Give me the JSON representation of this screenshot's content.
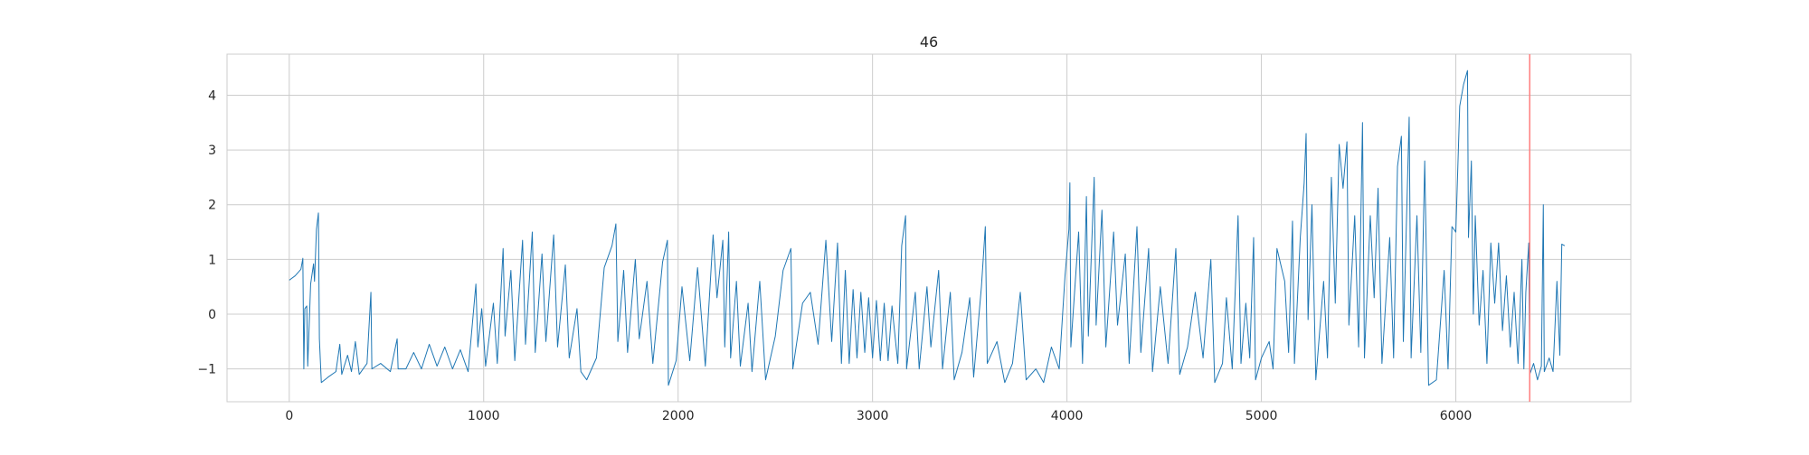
{
  "chart_data": {
    "type": "line",
    "title": "46",
    "xlabel": "",
    "ylabel": "",
    "xlim": [
      -320,
      6900
    ],
    "ylim": [
      -1.6,
      4.75
    ],
    "grid": true,
    "xticks": [
      0,
      1000,
      2000,
      3000,
      4000,
      5000,
      6000
    ],
    "xtick_labels": [
      "0",
      "1000",
      "2000",
      "3000",
      "4000",
      "5000",
      "6000"
    ],
    "yticks": [
      -1,
      0,
      1,
      2,
      3,
      4
    ],
    "ytick_labels": [
      "−1",
      "0",
      "1",
      "2",
      "3",
      "4"
    ],
    "vertical_marker": {
      "x": 6380,
      "color": "#ff7f7f"
    },
    "series": [
      {
        "color": "#1f77b4",
        "x_range": [
          0,
          6560
        ],
        "points": [
          [
            0,
            0.62
          ],
          [
            30,
            0.7
          ],
          [
            60,
            0.82
          ],
          [
            70,
            1.02
          ],
          [
            75,
            -1.0
          ],
          [
            80,
            0.1
          ],
          [
            90,
            0.15
          ],
          [
            95,
            -0.95
          ],
          [
            110,
            0.55
          ],
          [
            125,
            0.92
          ],
          [
            130,
            0.6
          ],
          [
            140,
            1.55
          ],
          [
            150,
            1.85
          ],
          [
            155,
            -0.45
          ],
          [
            165,
            -1.25
          ],
          [
            200,
            -1.15
          ],
          [
            240,
            -1.05
          ],
          [
            260,
            -0.55
          ],
          [
            270,
            -1.1
          ],
          [
            300,
            -0.75
          ],
          [
            320,
            -1.05
          ],
          [
            340,
            -0.5
          ],
          [
            360,
            -1.1
          ],
          [
            400,
            -0.9
          ],
          [
            420,
            0.4
          ],
          [
            425,
            -1.0
          ],
          [
            470,
            -0.9
          ],
          [
            520,
            -1.05
          ],
          [
            555,
            -0.45
          ],
          [
            560,
            -1.0
          ],
          [
            600,
            -1.0
          ],
          [
            640,
            -0.7
          ],
          [
            680,
            -1.0
          ],
          [
            720,
            -0.55
          ],
          [
            760,
            -0.95
          ],
          [
            800,
            -0.6
          ],
          [
            840,
            -1.0
          ],
          [
            880,
            -0.65
          ],
          [
            920,
            -1.05
          ],
          [
            960,
            0.55
          ],
          [
            970,
            -0.6
          ],
          [
            990,
            0.1
          ],
          [
            1010,
            -0.95
          ],
          [
            1050,
            0.2
          ],
          [
            1070,
            -0.9
          ],
          [
            1100,
            1.2
          ],
          [
            1110,
            -0.4
          ],
          [
            1140,
            0.8
          ],
          [
            1160,
            -0.85
          ],
          [
            1200,
            1.35
          ],
          [
            1215,
            -0.55
          ],
          [
            1250,
            1.5
          ],
          [
            1265,
            -0.7
          ],
          [
            1300,
            1.1
          ],
          [
            1320,
            -0.5
          ],
          [
            1360,
            1.45
          ],
          [
            1380,
            -0.6
          ],
          [
            1420,
            0.9
          ],
          [
            1440,
            -0.8
          ],
          [
            1480,
            0.1
          ],
          [
            1500,
            -1.05
          ],
          [
            1530,
            -1.2
          ],
          [
            1580,
            -0.8
          ],
          [
            1620,
            0.85
          ],
          [
            1660,
            1.25
          ],
          [
            1680,
            1.65
          ],
          [
            1690,
            -0.5
          ],
          [
            1720,
            0.8
          ],
          [
            1740,
            -0.7
          ],
          [
            1780,
            1.0
          ],
          [
            1800,
            -0.45
          ],
          [
            1840,
            0.6
          ],
          [
            1870,
            -0.9
          ],
          [
            1920,
            0.95
          ],
          [
            1945,
            1.35
          ],
          [
            1950,
            -1.3
          ],
          [
            1990,
            -0.85
          ],
          [
            2020,
            0.5
          ],
          [
            2060,
            -0.85
          ],
          [
            2100,
            0.85
          ],
          [
            2140,
            -0.95
          ],
          [
            2180,
            1.45
          ],
          [
            2200,
            0.3
          ],
          [
            2230,
            1.35
          ],
          [
            2240,
            -0.6
          ],
          [
            2260,
            1.5
          ],
          [
            2270,
            -0.8
          ],
          [
            2300,
            0.6
          ],
          [
            2320,
            -0.95
          ],
          [
            2360,
            0.2
          ],
          [
            2380,
            -1.05
          ],
          [
            2420,
            0.6
          ],
          [
            2450,
            -1.2
          ],
          [
            2500,
            -0.4
          ],
          [
            2540,
            0.8
          ],
          [
            2580,
            1.2
          ],
          [
            2590,
            -1.0
          ],
          [
            2640,
            0.2
          ],
          [
            2680,
            0.4
          ],
          [
            2720,
            -0.55
          ],
          [
            2760,
            1.35
          ],
          [
            2790,
            -0.5
          ],
          [
            2820,
            1.3
          ],
          [
            2840,
            -0.9
          ],
          [
            2860,
            0.8
          ],
          [
            2880,
            -0.9
          ],
          [
            2900,
            0.45
          ],
          [
            2920,
            -0.8
          ],
          [
            2940,
            0.4
          ],
          [
            2960,
            -0.7
          ],
          [
            2980,
            0.3
          ],
          [
            3000,
            -0.8
          ],
          [
            3020,
            0.25
          ],
          [
            3040,
            -0.85
          ],
          [
            3060,
            0.2
          ],
          [
            3080,
            -0.85
          ],
          [
            3100,
            0.15
          ],
          [
            3130,
            -0.9
          ],
          [
            3150,
            1.25
          ],
          [
            3170,
            1.8
          ],
          [
            3175,
            -1.0
          ],
          [
            3220,
            0.4
          ],
          [
            3240,
            -1.0
          ],
          [
            3280,
            0.5
          ],
          [
            3300,
            -0.6
          ],
          [
            3340,
            0.8
          ],
          [
            3360,
            -1.0
          ],
          [
            3400,
            0.4
          ],
          [
            3420,
            -1.2
          ],
          [
            3460,
            -0.7
          ],
          [
            3500,
            0.3
          ],
          [
            3520,
            -1.15
          ],
          [
            3560,
            0.5
          ],
          [
            3580,
            1.6
          ],
          [
            3590,
            -0.9
          ],
          [
            3640,
            -0.5
          ],
          [
            3680,
            -1.25
          ],
          [
            3720,
            -0.9
          ],
          [
            3760,
            0.4
          ],
          [
            3790,
            -1.2
          ],
          [
            3840,
            -1.0
          ],
          [
            3880,
            -1.25
          ],
          [
            3920,
            -0.6
          ],
          [
            3960,
            -1.0
          ],
          [
            3990,
            0.7
          ],
          [
            4010,
            1.55
          ],
          [
            4015,
            2.4
          ],
          [
            4020,
            -0.6
          ],
          [
            4060,
            1.5
          ],
          [
            4080,
            -0.9
          ],
          [
            4100,
            2.15
          ],
          [
            4110,
            -0.4
          ],
          [
            4140,
            2.5
          ],
          [
            4150,
            -0.2
          ],
          [
            4180,
            1.9
          ],
          [
            4200,
            -0.6
          ],
          [
            4240,
            1.5
          ],
          [
            4260,
            -0.2
          ],
          [
            4300,
            1.1
          ],
          [
            4320,
            -0.9
          ],
          [
            4360,
            1.6
          ],
          [
            4380,
            -0.7
          ],
          [
            4420,
            1.2
          ],
          [
            4440,
            -1.05
          ],
          [
            4480,
            0.5
          ],
          [
            4520,
            -0.9
          ],
          [
            4560,
            1.2
          ],
          [
            4580,
            -1.1
          ],
          [
            4620,
            -0.6
          ],
          [
            4660,
            0.4
          ],
          [
            4700,
            -0.8
          ],
          [
            4740,
            1.0
          ],
          [
            4760,
            -1.25
          ],
          [
            4800,
            -0.9
          ],
          [
            4820,
            0.3
          ],
          [
            4850,
            -1.0
          ],
          [
            4880,
            1.8
          ],
          [
            4895,
            -0.9
          ],
          [
            4920,
            0.2
          ],
          [
            4940,
            -0.8
          ],
          [
            4960,
            1.4
          ],
          [
            4970,
            -1.2
          ],
          [
            5000,
            -0.8
          ],
          [
            5040,
            -0.5
          ],
          [
            5060,
            -1.0
          ],
          [
            5080,
            1.2
          ],
          [
            5120,
            0.6
          ],
          [
            5140,
            -0.7
          ],
          [
            5160,
            1.7
          ],
          [
            5170,
            -0.9
          ],
          [
            5200,
            1.4
          ],
          [
            5220,
            2.4
          ],
          [
            5230,
            3.3
          ],
          [
            5240,
            -0.1
          ],
          [
            5260,
            2.0
          ],
          [
            5280,
            -1.2
          ],
          [
            5320,
            0.6
          ],
          [
            5340,
            -0.8
          ],
          [
            5360,
            2.5
          ],
          [
            5380,
            0.2
          ],
          [
            5400,
            3.1
          ],
          [
            5420,
            2.3
          ],
          [
            5440,
            3.15
          ],
          [
            5450,
            -0.2
          ],
          [
            5480,
            1.8
          ],
          [
            5500,
            -0.6
          ],
          [
            5520,
            3.5
          ],
          [
            5530,
            -0.8
          ],
          [
            5560,
            1.8
          ],
          [
            5580,
            0.3
          ],
          [
            5600,
            2.3
          ],
          [
            5620,
            -0.9
          ],
          [
            5660,
            1.4
          ],
          [
            5680,
            -0.8
          ],
          [
            5700,
            2.7
          ],
          [
            5720,
            3.25
          ],
          [
            5730,
            -0.5
          ],
          [
            5760,
            3.6
          ],
          [
            5770,
            -0.8
          ],
          [
            5800,
            1.8
          ],
          [
            5820,
            -0.7
          ],
          [
            5840,
            2.8
          ],
          [
            5860,
            -1.3
          ],
          [
            5900,
            -1.2
          ],
          [
            5940,
            0.8
          ],
          [
            5960,
            -1.0
          ],
          [
            5980,
            1.6
          ],
          [
            6000,
            1.5
          ],
          [
            6020,
            3.8
          ],
          [
            6040,
            4.2
          ],
          [
            6060,
            4.45
          ],
          [
            6065,
            1.4
          ],
          [
            6080,
            2.8
          ],
          [
            6090,
            0.0
          ],
          [
            6100,
            1.8
          ],
          [
            6120,
            -0.2
          ],
          [
            6140,
            0.8
          ],
          [
            6160,
            -0.9
          ],
          [
            6180,
            1.3
          ],
          [
            6200,
            0.2
          ],
          [
            6220,
            1.3
          ],
          [
            6240,
            -0.3
          ],
          [
            6260,
            0.7
          ],
          [
            6280,
            -0.6
          ],
          [
            6300,
            0.4
          ],
          [
            6320,
            -0.9
          ],
          [
            6340,
            1.0
          ],
          [
            6350,
            -1.0
          ],
          [
            6360,
            0.4
          ],
          [
            6375,
            1.3
          ],
          [
            6380,
            -1.1
          ],
          [
            6400,
            -0.9
          ],
          [
            6420,
            -1.2
          ],
          [
            6440,
            -0.95
          ],
          [
            6450,
            2.0
          ],
          [
            6455,
            -1.05
          ],
          [
            6480,
            -0.8
          ],
          [
            6500,
            -1.05
          ],
          [
            6520,
            0.6
          ],
          [
            6535,
            -0.75
          ],
          [
            6545,
            1.28
          ],
          [
            6560,
            1.25
          ]
        ]
      }
    ]
  }
}
